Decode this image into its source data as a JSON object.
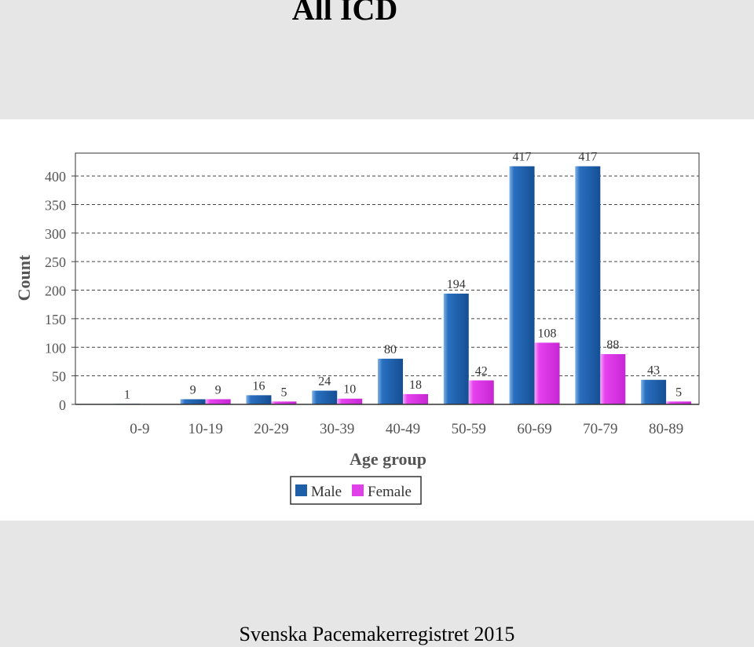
{
  "slide": {
    "title": "All ICD",
    "footer": "Svenska Pacemakerregistret 2015"
  },
  "chart_data": {
    "type": "bar",
    "xlabel": "Age group",
    "ylabel": "Count",
    "categories": [
      "0-9",
      "10-19",
      "20-29",
      "30-39",
      "40-49",
      "50-59",
      "60-69",
      "70-79",
      "80-89"
    ],
    "series": [
      {
        "name": "Male",
        "values": [
          1,
          9,
          16,
          24,
          80,
          194,
          417,
          417,
          43
        ],
        "color": "#1f5fa8"
      },
      {
        "name": "Female",
        "values": [
          null,
          9,
          5,
          10,
          18,
          42,
          108,
          88,
          5
        ],
        "color": "#e040e8"
      }
    ],
    "ylim": [
      0,
      440
    ],
    "yticks": [
      0,
      50,
      100,
      150,
      200,
      250,
      300,
      350,
      400
    ],
    "grid": true,
    "legend": "bottom-center"
  }
}
